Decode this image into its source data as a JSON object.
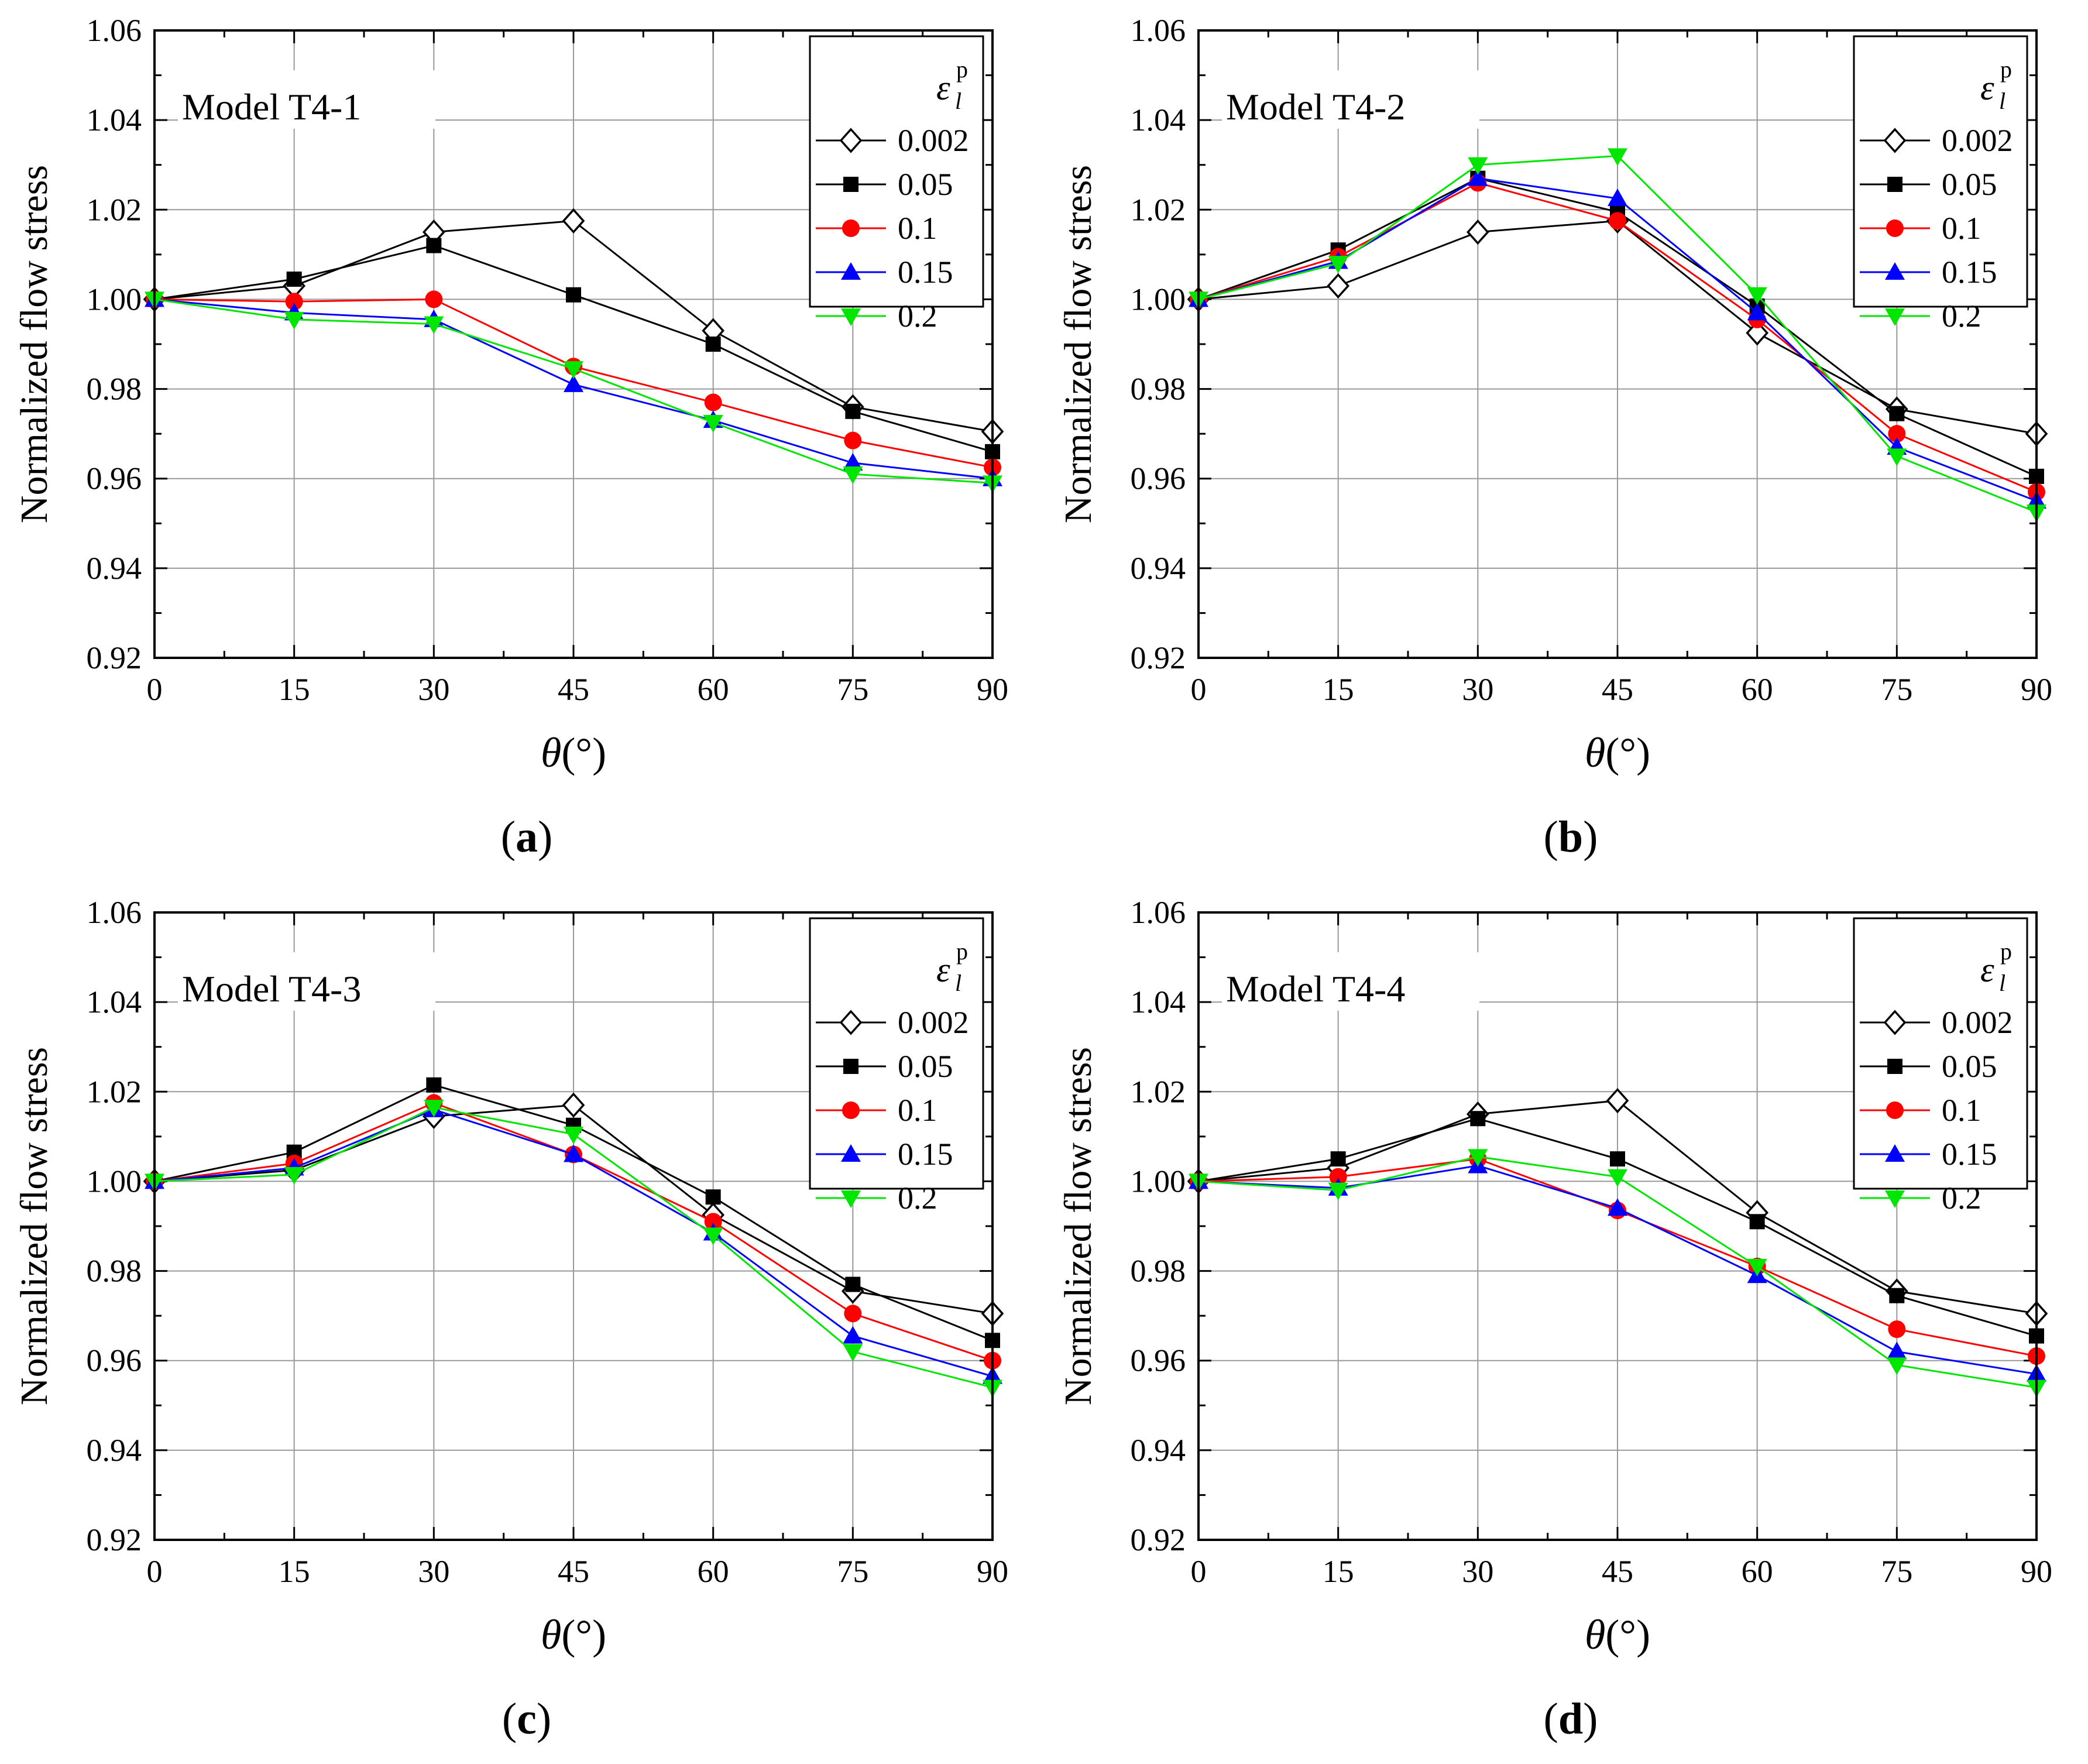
{
  "figure": {
    "panels": [
      "(a)",
      "(b)",
      "(c)",
      "(d)"
    ]
  },
  "colors": {
    "series": [
      "#000000",
      "#000000",
      "#ff0000",
      "#0000ff",
      "#00e600"
    ],
    "grid": "#999999",
    "axis": "#000000"
  },
  "chart_data": [
    {
      "type": "line",
      "panel_label": "a",
      "title": "Model T4-1",
      "xlabel": "θ (°)",
      "ylabel": "Normalized flow stress",
      "xlim": [
        0,
        90
      ],
      "ylim": [
        0.92,
        1.06
      ],
      "xticks": [
        "0",
        "15",
        "30",
        "45",
        "60",
        "75",
        "90"
      ],
      "yticks": [
        "0.92",
        "0.94",
        "0.96",
        "0.98",
        "1.00",
        "1.02",
        "1.04",
        "1.06"
      ],
      "legend_title": "ε_l^p",
      "legend_position": "top-right",
      "grid": true,
      "x": [
        0,
        15,
        30,
        45,
        60,
        75,
        90
      ],
      "series": [
        {
          "name": "0.002",
          "marker": "diamond-open",
          "values": [
            1.0,
            1.003,
            1.015,
            1.0175,
            0.993,
            0.976,
            0.9705
          ]
        },
        {
          "name": "0.05",
          "marker": "square",
          "values": [
            1.0,
            1.0045,
            1.012,
            1.001,
            0.99,
            0.975,
            0.966
          ]
        },
        {
          "name": "0.1",
          "marker": "circle",
          "values": [
            1.0,
            0.9995,
            1.0,
            0.985,
            0.977,
            0.9685,
            0.9625
          ]
        },
        {
          "name": "0.15",
          "marker": "triangle-up",
          "values": [
            1.0,
            0.997,
            0.9955,
            0.981,
            0.973,
            0.9635,
            0.96
          ]
        },
        {
          "name": "0.2",
          "marker": "triangle-down",
          "values": [
            1.0,
            0.9955,
            0.9945,
            0.9845,
            0.9725,
            0.961,
            0.959
          ]
        }
      ]
    },
    {
      "type": "line",
      "panel_label": "b",
      "title": "Model T4-2",
      "xlabel": "θ (°)",
      "ylabel": "Normalized flow stress",
      "xlim": [
        0,
        90
      ],
      "ylim": [
        0.92,
        1.06
      ],
      "xticks": [
        "0",
        "15",
        "30",
        "45",
        "60",
        "75",
        "90"
      ],
      "yticks": [
        "0.92",
        "0.94",
        "0.96",
        "0.98",
        "1.00",
        "1.02",
        "1.04",
        "1.06"
      ],
      "legend_title": "ε_l^p",
      "legend_position": "top-right",
      "grid": true,
      "x": [
        0,
        15,
        30,
        45,
        60,
        75,
        90
      ],
      "series": [
        {
          "name": "0.002",
          "marker": "diamond-open",
          "values": [
            1.0,
            1.003,
            1.015,
            1.0175,
            0.9925,
            0.9755,
            0.97
          ]
        },
        {
          "name": "0.05",
          "marker": "square",
          "values": [
            1.0,
            1.011,
            1.027,
            1.0195,
            0.9985,
            0.9745,
            0.9605
          ]
        },
        {
          "name": "0.1",
          "marker": "circle",
          "values": [
            1.0,
            1.0095,
            1.026,
            1.0175,
            0.9955,
            0.97,
            0.957
          ]
        },
        {
          "name": "0.15",
          "marker": "triangle-up",
          "values": [
            1.0,
            1.0085,
            1.027,
            1.0225,
            0.997,
            0.967,
            0.955
          ]
        },
        {
          "name": "0.2",
          "marker": "triangle-down",
          "values": [
            1.0,
            1.008,
            1.03,
            1.032,
            1.001,
            0.965,
            0.9525
          ]
        }
      ]
    },
    {
      "type": "line",
      "panel_label": "c",
      "title": "Model T4-3",
      "xlabel": "θ (°)",
      "ylabel": "Normalized flow stress",
      "xlim": [
        0,
        90
      ],
      "ylim": [
        0.92,
        1.06
      ],
      "xticks": [
        "0",
        "15",
        "30",
        "45",
        "60",
        "75",
        "90"
      ],
      "yticks": [
        "0.92",
        "0.94",
        "0.96",
        "0.98",
        "1.00",
        "1.02",
        "1.04",
        "1.06"
      ],
      "legend_title": "ε_l^p",
      "legend_position": "top-right",
      "grid": true,
      "x": [
        0,
        15,
        30,
        45,
        60,
        75,
        90
      ],
      "series": [
        {
          "name": "0.002",
          "marker": "diamond-open",
          "values": [
            1.0,
            1.0025,
            1.0145,
            1.017,
            0.9925,
            0.9755,
            0.9705
          ]
        },
        {
          "name": "0.05",
          "marker": "square",
          "values": [
            1.0,
            1.0065,
            1.0215,
            1.0125,
            0.9965,
            0.977,
            0.9645
          ]
        },
        {
          "name": "0.1",
          "marker": "circle",
          "values": [
            1.0,
            1.004,
            1.0175,
            1.006,
            0.991,
            0.9705,
            0.96
          ]
        },
        {
          "name": "0.15",
          "marker": "triangle-up",
          "values": [
            1.0,
            1.003,
            1.016,
            1.006,
            0.9885,
            0.9655,
            0.9565
          ]
        },
        {
          "name": "0.2",
          "marker": "triangle-down",
          "values": [
            1.0,
            1.0015,
            1.0165,
            1.0105,
            0.988,
            0.962,
            0.954
          ]
        }
      ]
    },
    {
      "type": "line",
      "panel_label": "d",
      "title": "Model T4-4",
      "xlabel": "θ (°)",
      "ylabel": "Normalized flow stress",
      "xlim": [
        0,
        90
      ],
      "ylim": [
        0.92,
        1.06
      ],
      "xticks": [
        "0",
        "15",
        "30",
        "45",
        "60",
        "75",
        "90"
      ],
      "yticks": [
        "0.92",
        "0.94",
        "0.96",
        "0.98",
        "1.00",
        "1.02",
        "1.04",
        "1.06"
      ],
      "legend_title": "ε_l^p",
      "legend_position": "top-right",
      "grid": true,
      "x": [
        0,
        15,
        30,
        45,
        60,
        75,
        90
      ],
      "series": [
        {
          "name": "0.002",
          "marker": "diamond-open",
          "values": [
            1.0,
            1.003,
            1.015,
            1.018,
            0.993,
            0.9755,
            0.9705
          ]
        },
        {
          "name": "0.05",
          "marker": "square",
          "values": [
            1.0,
            1.005,
            1.014,
            1.005,
            0.991,
            0.9745,
            0.9655
          ]
        },
        {
          "name": "0.1",
          "marker": "circle",
          "values": [
            1.0,
            1.001,
            1.005,
            0.9935,
            0.981,
            0.967,
            0.961
          ]
        },
        {
          "name": "0.15",
          "marker": "triangle-up",
          "values": [
            1.0,
            0.9985,
            1.0035,
            0.994,
            0.979,
            0.962,
            0.957
          ]
        },
        {
          "name": "0.2",
          "marker": "triangle-down",
          "values": [
            1.0,
            0.998,
            1.0055,
            1.001,
            0.981,
            0.959,
            0.954
          ]
        }
      ]
    }
  ]
}
